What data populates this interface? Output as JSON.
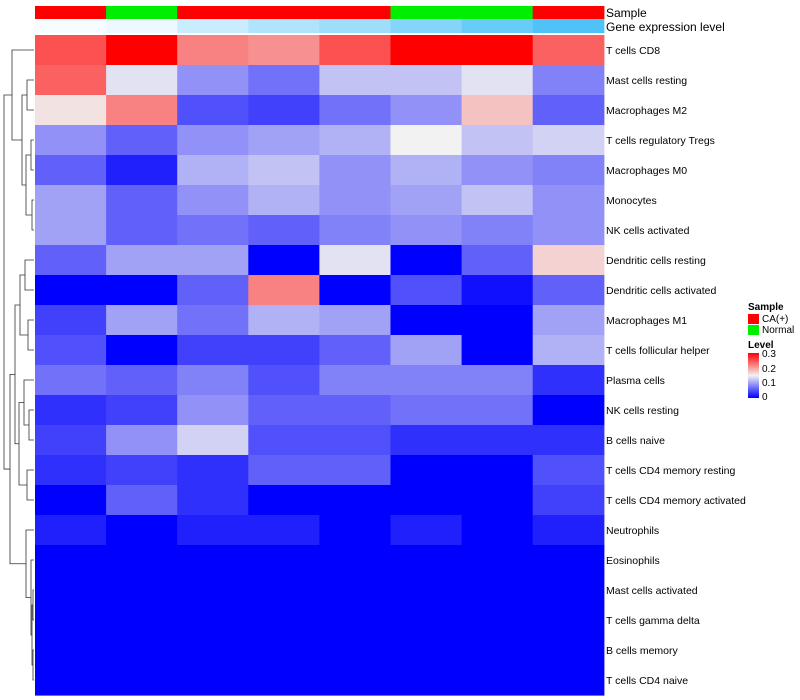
{
  "chart_data": {
    "type": "heatmap",
    "rows": [
      "T cells CD8",
      "Mast cells resting",
      "Macrophages M2",
      "T cells regulatory  Tregs",
      "Macrophages M0",
      "Monocytes",
      "NK cells activated",
      "Dendritic cells resting",
      "Dendritic cells activated",
      "Macrophages M1",
      "T cells follicular helper",
      "Plasma cells",
      "NK cells resting",
      "B cells naive",
      "T cells CD4 memory resting",
      "T cells CD4 memory activated",
      "Neutrophils",
      "Eosinophils",
      "Mast cells activated",
      "T cells gamma delta",
      "B cells memory",
      "T cells CD4 naive"
    ],
    "values": [
      [
        0.25,
        0.3,
        0.22,
        0.21,
        0.25,
        0.3,
        0.3,
        0.24
      ],
      [
        0.24,
        0.14,
        0.09,
        0.07,
        0.12,
        0.12,
        0.14,
        0.08
      ],
      [
        0.16,
        0.22,
        0.05,
        0.04,
        0.07,
        0.09,
        0.18,
        0.06
      ],
      [
        0.09,
        0.06,
        0.09,
        0.1,
        0.11,
        0.15,
        0.12,
        0.13
      ],
      [
        0.06,
        0.02,
        0.11,
        0.12,
        0.09,
        0.11,
        0.09,
        0.08
      ],
      [
        0.1,
        0.06,
        0.09,
        0.11,
        0.09,
        0.1,
        0.12,
        0.09
      ],
      [
        0.1,
        0.06,
        0.07,
        0.06,
        0.08,
        0.09,
        0.08,
        0.09
      ],
      [
        0.06,
        0.1,
        0.1,
        0.0,
        0.14,
        0.0,
        0.06,
        0.17
      ],
      [
        0.0,
        0.0,
        0.06,
        0.22,
        0.0,
        0.05,
        0.01,
        0.06
      ],
      [
        0.04,
        0.1,
        0.07,
        0.11,
        0.1,
        0.0,
        0.0,
        0.1
      ],
      [
        0.05,
        0.0,
        0.04,
        0.04,
        0.06,
        0.1,
        0.0,
        0.11
      ],
      [
        0.07,
        0.06,
        0.08,
        0.05,
        0.08,
        0.08,
        0.08,
        0.03
      ],
      [
        0.03,
        0.04,
        0.09,
        0.06,
        0.06,
        0.07,
        0.07,
        0.0
      ],
      [
        0.04,
        0.09,
        0.13,
        0.05,
        0.05,
        0.03,
        0.03,
        0.03
      ],
      [
        0.03,
        0.04,
        0.03,
        0.06,
        0.06,
        0.0,
        0.0,
        0.05
      ],
      [
        0.0,
        0.06,
        0.03,
        0.0,
        0.0,
        0.0,
        0.0,
        0.04
      ],
      [
        0.02,
        0.0,
        0.02,
        0.02,
        0.0,
        0.02,
        0.0,
        0.02
      ],
      [
        0.0,
        0.0,
        0.0,
        0.0,
        0.0,
        0.0,
        0.0,
        0.0
      ],
      [
        0.0,
        0.0,
        0.0,
        0.0,
        0.0,
        0.0,
        0.0,
        0.0
      ],
      [
        0.0,
        0.0,
        0.0,
        0.0,
        0.0,
        0.0,
        0.0,
        0.0
      ],
      [
        0.0,
        0.0,
        0.0,
        0.0,
        0.0,
        0.0,
        0.0,
        0.0
      ],
      [
        0.0,
        0.0,
        0.0,
        0.0,
        0.0,
        0.0,
        0.0,
        0.0
      ]
    ],
    "annotations": {
      "sample": {
        "label": "Sample",
        "values": [
          "CA(+)",
          "Normal",
          "CA(+)",
          "CA(+)",
          "CA(+)",
          "Normal",
          "Normal",
          "CA(+)"
        ]
      },
      "gene_expression": {
        "label": "Gene expression level",
        "values": [
          0.05,
          0.1,
          0.3,
          0.45,
          0.55,
          0.7,
          0.85,
          1.0
        ]
      }
    },
    "legend": {
      "position": "right",
      "sample_title": "Sample",
      "sample_items": [
        {
          "label": "CA(+)",
          "color": "#ff0000"
        },
        {
          "label": "Normal",
          "color": "#00ee00"
        }
      ],
      "level_title": "Level",
      "level_ticks": [
        "0.3",
        "0.2",
        "0.1",
        "0"
      ],
      "level_range": [
        0,
        0.3
      ]
    },
    "colors": {
      "low": "#0000ff",
      "mid": "#f2f2f2",
      "high": "#ff0000",
      "gene_low": "#ffffff",
      "gene_high": "#4fc3f7"
    },
    "row_dendrogram": true
  }
}
